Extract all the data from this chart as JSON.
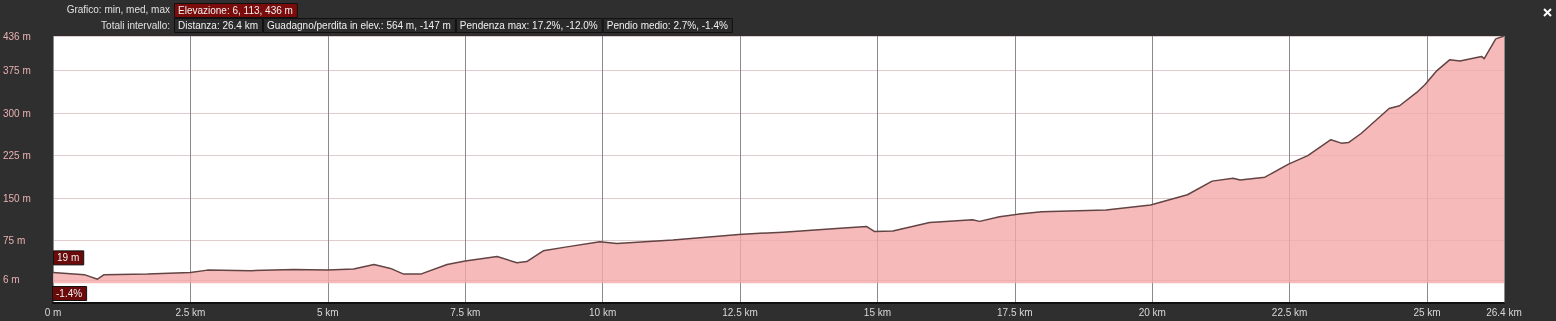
{
  "chart_data": {
    "type": "area",
    "title": "Grafico: min, med, max",
    "subtitle": "Totali intervallo:",
    "annotations": [
      "Elevazione: 6, 113, 436 m",
      "Distanza: 26.4 km",
      "Guadagno/perdita in elev.: 564 m, -147 m",
      "Pendenza max: 17.2%, -12.0%",
      "Pendio medio: 2.7%, -1.4%",
      {
        "text": "19 m",
        "x": 0,
        "y": 19
      },
      "-1.4%"
    ],
    "x": [
      0,
      0.57,
      0.81,
      0.93,
      1.72,
      2.5,
      2.81,
      3.6,
      4.38,
      5,
      5.47,
      5.84,
      6.14,
      6.38,
      6.69,
      7.17,
      7.5,
      8.08,
      8.44,
      8.62,
      8.92,
      9.35,
      9.95,
      10.26,
      11.28,
      12.48,
      13.28,
      14.19,
      14.8,
      14.95,
      15.28,
      15.95,
      16.31,
      16.73,
      16.86,
      17.22,
      17.58,
      17.99,
      19.16,
      19.97,
      20.64,
      21.09,
      21.47,
      21.6,
      22.05,
      22.48,
      22.83,
      23.25,
      23.44,
      23.57,
      23.8,
      24.31,
      24.5,
      24.83,
      24.96,
      25.18,
      25.41,
      25.6,
      25.99,
      26.04,
      26.25,
      26.4
    ],
    "series": [
      {
        "color": "#f5a9a9",
        "values": [
          19,
          15,
          7,
          15,
          16,
          19,
          23,
          22,
          24,
          23,
          25,
          33,
          26,
          16,
          16,
          33,
          39,
          47,
          36,
          38,
          57,
          64,
          73,
          70,
          76,
          86,
          90,
          96,
          100,
          91,
          92,
          107,
          109,
          112,
          109,
          117,
          122,
          126,
          129,
          138,
          156,
          180,
          185,
          182,
          187,
          210,
          225,
          253,
          247,
          248,
          264,
          308,
          313,
          338,
          350,
          375,
          394,
          392,
          400,
          396,
          431,
          436
        ]
      }
    ],
    "xlim": [
      0,
      26.4
    ],
    "xticks": [
      {
        "value": 0,
        "label": "0 m"
      },
      {
        "value": 2.5,
        "label": "2.5 km"
      },
      {
        "value": 5,
        "label": "5 km"
      },
      {
        "value": 7.5,
        "label": "7.5 km"
      },
      {
        "value": 10,
        "label": "10 km"
      },
      {
        "value": 12.5,
        "label": "12.5 km"
      },
      {
        "value": 15,
        "label": "15 km"
      },
      {
        "value": 17.5,
        "label": "17.5 km"
      },
      {
        "value": 20,
        "label": "20 km"
      },
      {
        "value": 22.5,
        "label": "22.5 km"
      },
      {
        "value": 25,
        "label": "25 km"
      },
      {
        "value": 26.4,
        "label": "26.4 km"
      }
    ],
    "ylim": [
      -35,
      436
    ],
    "yticks": [
      {
        "value": 6,
        "label": "6 m"
      },
      {
        "value": 75,
        "label": "75 m"
      },
      {
        "value": 150,
        "label": "150 m"
      },
      {
        "value": 225,
        "label": "225 m"
      },
      {
        "value": 300,
        "label": "300 m"
      },
      {
        "value": 375,
        "label": "375 m"
      },
      {
        "value": 436,
        "label": "436 m"
      }
    ],
    "grid": true,
    "marker": "none"
  }
}
